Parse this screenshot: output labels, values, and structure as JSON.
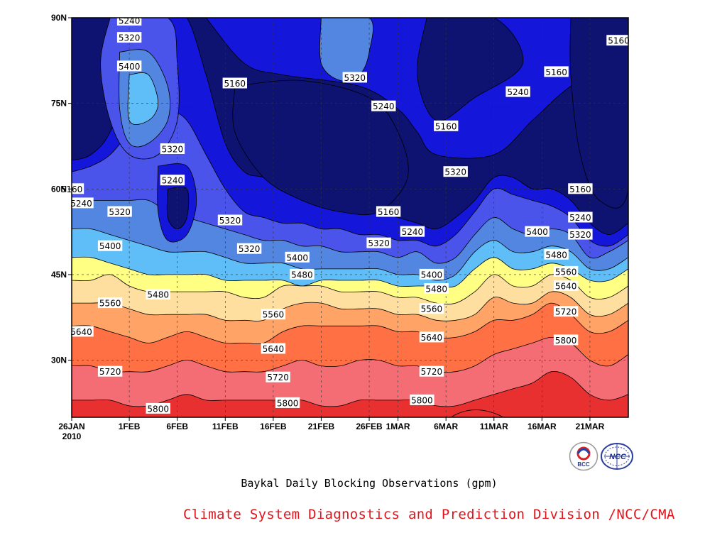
{
  "chart_data": {
    "type": "contour",
    "title": "Baykal Daily Blocking Observations (gpm)",
    "xlabel": "",
    "ylabel": "",
    "x_ticks": [
      "26JAN",
      "1FEB",
      "6FEB",
      "11FEB",
      "16FEB",
      "21FEB",
      "26FEB",
      "1MAR",
      "6MAR",
      "11MAR",
      "16MAR",
      "21MAR"
    ],
    "x_year_label": "2010",
    "y_ticks": [
      "30N",
      "45N",
      "60N",
      "75N",
      "90N"
    ],
    "xlim_days": [
      0,
      58
    ],
    "ylim_lat": [
      20,
      90
    ],
    "grid": true,
    "levels": [
      5160,
      5240,
      5320,
      5400,
      5480,
      5560,
      5640,
      5720,
      5800
    ],
    "level_colors": [
      "#0e1270",
      "#1416d9",
      "#4a53ea",
      "#5286e0",
      "#5fbef7",
      "#ffff84",
      "#ffdf9f",
      "#ffa466",
      "#ff7045",
      "#f46c74",
      "#e83030"
    ],
    "contour_labels": [
      {
        "value": "5240",
        "day": 6.0,
        "lat": 89.5
      },
      {
        "value": "5320",
        "day": 6.0,
        "lat": 86.5
      },
      {
        "value": "5400",
        "day": 6.0,
        "lat": 81.5
      },
      {
        "value": "5160",
        "day": 17.0,
        "lat": 78.5
      },
      {
        "value": "5320",
        "day": 29.5,
        "lat": 79.5
      },
      {
        "value": "5240",
        "day": 32.5,
        "lat": 74.5
      },
      {
        "value": "5160",
        "day": 39.0,
        "lat": 71.0
      },
      {
        "value": "5240",
        "day": 46.5,
        "lat": 77.0
      },
      {
        "value": "5160",
        "day": 50.5,
        "lat": 80.5
      },
      {
        "value": "5160",
        "day": 57.0,
        "lat": 86.0
      },
      {
        "value": "5320",
        "day": 10.5,
        "lat": 67.0
      },
      {
        "value": "5240",
        "day": 10.5,
        "lat": 61.5
      },
      {
        "value": "5160",
        "day": 0.0,
        "lat": 60.0
      },
      {
        "value": "5240",
        "day": 1.0,
        "lat": 57.5
      },
      {
        "value": "5320",
        "day": 5.0,
        "lat": 56.0
      },
      {
        "value": "5400",
        "day": 4.0,
        "lat": 50.0
      },
      {
        "value": "5320",
        "day": 16.5,
        "lat": 54.5
      },
      {
        "value": "5320",
        "day": 18.5,
        "lat": 49.5
      },
      {
        "value": "5400",
        "day": 23.5,
        "lat": 48.0
      },
      {
        "value": "5480",
        "day": 24.0,
        "lat": 45.0
      },
      {
        "value": "5160",
        "day": 33.0,
        "lat": 56.0
      },
      {
        "value": "5240",
        "day": 35.5,
        "lat": 52.5
      },
      {
        "value": "5320",
        "day": 32.0,
        "lat": 50.5
      },
      {
        "value": "5400",
        "day": 37.5,
        "lat": 45.0
      },
      {
        "value": "5480",
        "day": 38.0,
        "lat": 42.5
      },
      {
        "value": "5320",
        "day": 40.0,
        "lat": 63.0
      },
      {
        "value": "5400",
        "day": 48.5,
        "lat": 52.5
      },
      {
        "value": "5480",
        "day": 50.5,
        "lat": 48.5
      },
      {
        "value": "5160",
        "day": 53.0,
        "lat": 60.0
      },
      {
        "value": "5240",
        "day": 53.0,
        "lat": 55.0
      },
      {
        "value": "5320",
        "day": 53.0,
        "lat": 52.0
      },
      {
        "value": "5560",
        "day": 51.5,
        "lat": 45.5
      },
      {
        "value": "5640",
        "day": 51.5,
        "lat": 43.0
      },
      {
        "value": "5720",
        "day": 51.5,
        "lat": 38.5
      },
      {
        "value": "5800",
        "day": 51.5,
        "lat": 33.5
      },
      {
        "value": "5480",
        "day": 9.0,
        "lat": 41.5
      },
      {
        "value": "5560",
        "day": 4.0,
        "lat": 40.0
      },
      {
        "value": "5640",
        "day": 1.0,
        "lat": 35.0
      },
      {
        "value": "5560",
        "day": 21.0,
        "lat": 38.0
      },
      {
        "value": "5640",
        "day": 21.0,
        "lat": 32.0
      },
      {
        "value": "5560",
        "day": 37.5,
        "lat": 39.0
      },
      {
        "value": "5640",
        "day": 37.5,
        "lat": 34.0
      },
      {
        "value": "5720",
        "day": 4.0,
        "lat": 28.0
      },
      {
        "value": "5720",
        "day": 21.5,
        "lat": 27.0
      },
      {
        "value": "5720",
        "day": 37.5,
        "lat": 28.0
      },
      {
        "value": "5800",
        "day": 9.0,
        "lat": 21.5
      },
      {
        "value": "5800",
        "day": 22.5,
        "lat": 22.5
      },
      {
        "value": "5800",
        "day": 36.5,
        "lat": 23.0
      }
    ]
  },
  "footer": {
    "credit": "Climate System Diagnostics and Prediction Division /NCC/CMA",
    "logo_left": "BCC",
    "logo_right": "NCC"
  }
}
